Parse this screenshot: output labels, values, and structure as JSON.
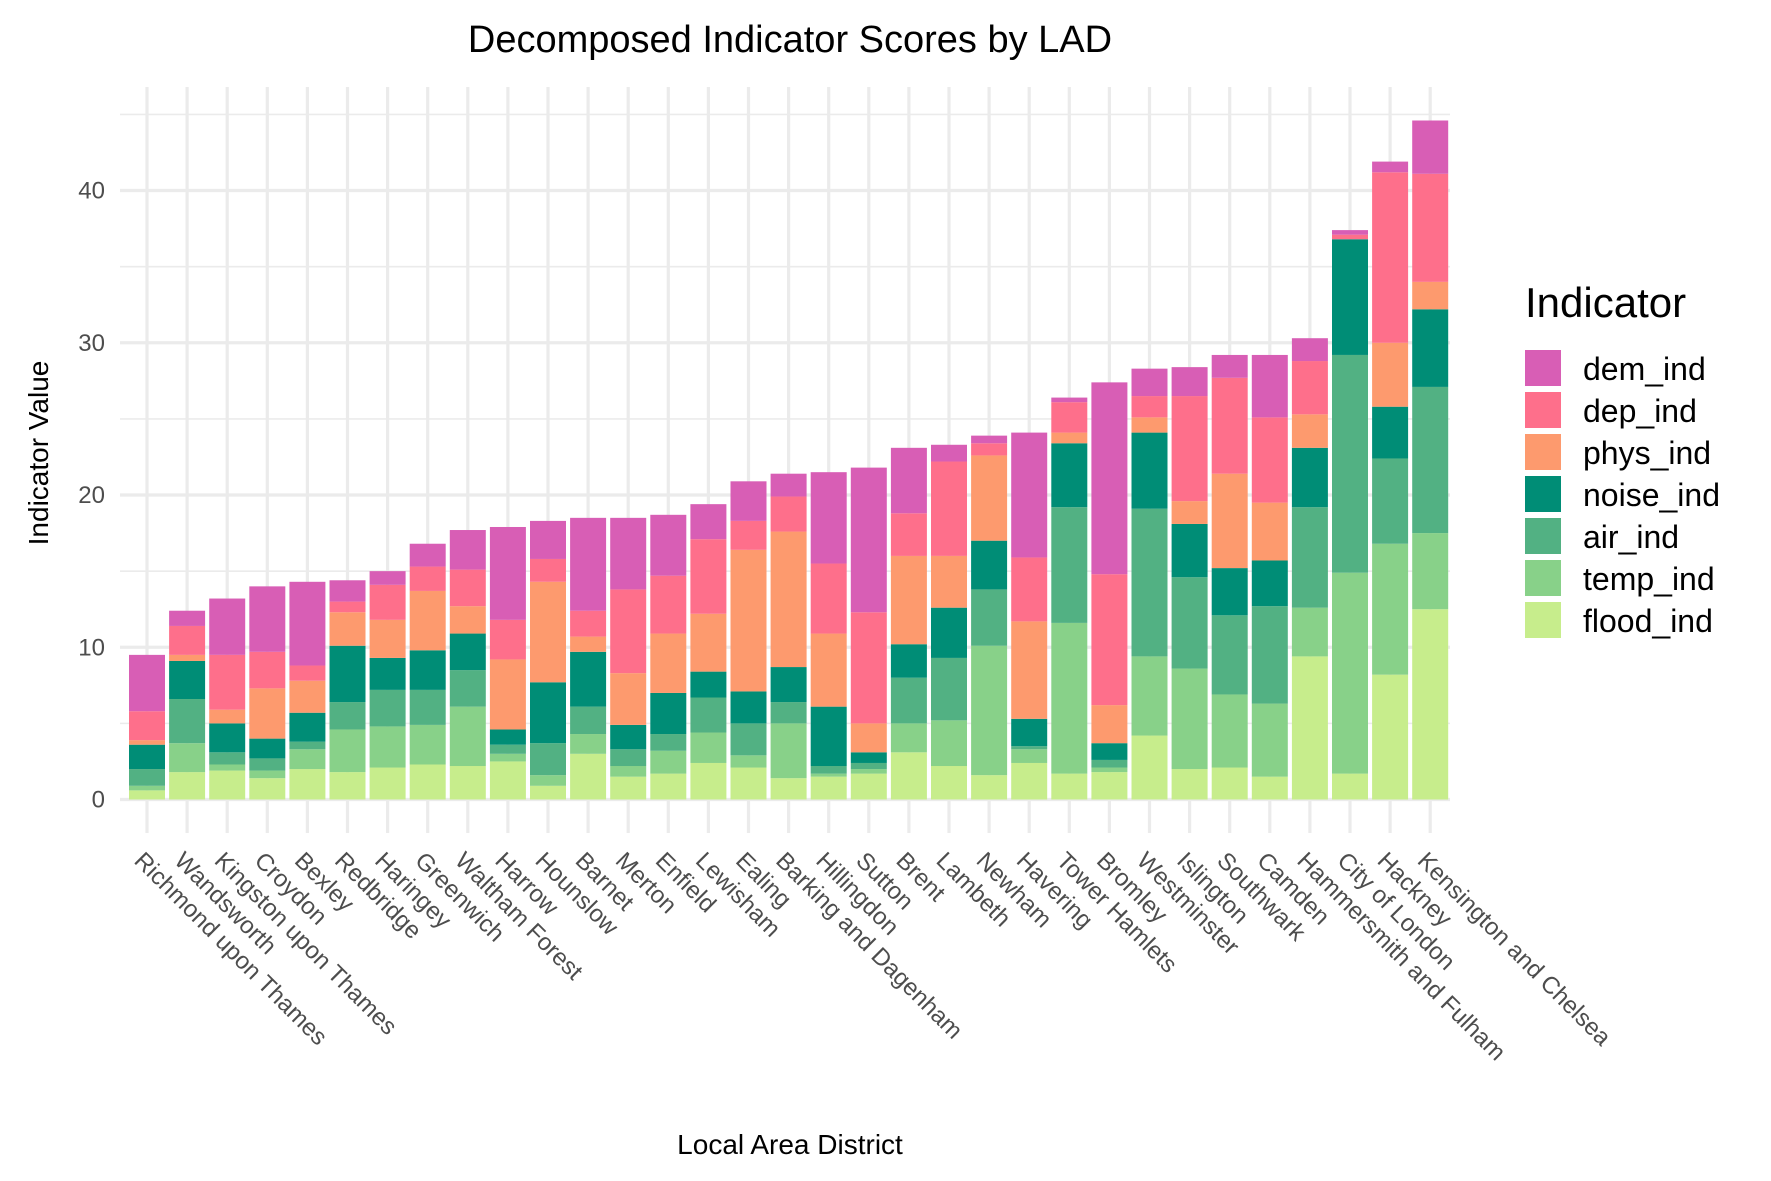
{
  "chart_data": {
    "type": "bar",
    "stacked": true,
    "title": "Decomposed Indicator Scores by LAD",
    "xlabel": "Local Area District",
    "ylabel": "Indicator Value",
    "ylim": [
      -2.2,
      46.8
    ],
    "yticks": [
      0,
      10,
      20,
      30,
      40
    ],
    "grid": true,
    "legend_title": "Indicator",
    "legend_position": "right",
    "categories": [
      "Richmond upon Thames",
      "Wandsworth",
      "Kingston upon Thames",
      "Croydon",
      "Bexley",
      "Redbridge",
      "Haringey",
      "Greenwich",
      "Waltham Forest",
      "Harrow",
      "Hounslow",
      "Barnet",
      "Merton",
      "Enfield",
      "Lewisham",
      "Ealing",
      "Barking and Dagenham",
      "Hillingdon",
      "Sutton",
      "Brent",
      "Lambeth",
      "Newham",
      "Havering",
      "Tower Hamlets",
      "Bromley",
      "Westminster",
      "Islington",
      "Southwark",
      "Camden",
      "Hammersmith and Fulham",
      "City of London",
      "Hackney",
      "Kensington and Chelsea"
    ],
    "series": [
      {
        "name": "flood_ind",
        "color": "#c7ed8c",
        "values": [
          0.6,
          1.8,
          1.9,
          1.4,
          2.0,
          1.8,
          2.1,
          2.3,
          2.2,
          2.5,
          0.9,
          3.0,
          1.5,
          1.7,
          2.4,
          2.1,
          1.4,
          1.5,
          1.7,
          3.1,
          2.2,
          1.6,
          2.4,
          1.7,
          1.8,
          4.2,
          2.0,
          2.1,
          1.5,
          9.4,
          1.7,
          8.2,
          12.5
        ]
      },
      {
        "name": "temp_ind",
        "color": "#88d189",
        "values": [
          0.3,
          1.9,
          0.4,
          0.5,
          1.3,
          2.8,
          2.7,
          2.6,
          3.9,
          0.5,
          0.7,
          1.3,
          0.7,
          1.5,
          2.0,
          0.8,
          3.6,
          0.2,
          0.3,
          1.9,
          3.0,
          8.5,
          0.9,
          9.9,
          0.3,
          5.2,
          6.6,
          4.8,
          4.8,
          3.2,
          13.2,
          8.6,
          5.0
        ]
      },
      {
        "name": "air_ind",
        "color": "#52b183",
        "values": [
          1.1,
          2.9,
          0.8,
          0.8,
          0.5,
          1.8,
          2.4,
          2.3,
          2.4,
          0.6,
          2.1,
          1.8,
          1.1,
          1.1,
          2.3,
          2.1,
          1.4,
          0.5,
          0.4,
          3.0,
          4.1,
          3.7,
          0.2,
          7.6,
          0.5,
          9.7,
          6.0,
          5.2,
          6.4,
          6.6,
          14.3,
          5.6,
          9.6
        ]
      },
      {
        "name": "noise_ind",
        "color": "#008d76",
        "values": [
          1.6,
          2.5,
          1.9,
          1.3,
          1.9,
          3.7,
          2.1,
          2.6,
          2.4,
          1.0,
          4.0,
          3.6,
          1.6,
          2.7,
          1.7,
          2.1,
          2.3,
          3.9,
          0.7,
          2.2,
          3.3,
          3.2,
          1.8,
          4.2,
          1.1,
          5.0,
          3.5,
          3.1,
          3.0,
          3.9,
          7.6,
          3.4,
          5.1
        ]
      },
      {
        "name": "phys_ind",
        "color": "#fd9a6e",
        "values": [
          0.3,
          0.4,
          0.9,
          3.3,
          2.1,
          2.2,
          2.5,
          3.9,
          1.8,
          4.6,
          6.6,
          1.0,
          3.4,
          3.9,
          3.8,
          9.3,
          8.9,
          4.8,
          1.9,
          5.8,
          3.4,
          5.6,
          6.4,
          0.7,
          2.5,
          1.0,
          1.5,
          6.2,
          3.8,
          2.2,
          0.0,
          4.2,
          1.8
        ]
      },
      {
        "name": "dep_ind",
        "color": "#fe6f8b",
        "values": [
          1.9,
          1.9,
          3.6,
          2.4,
          1.0,
          0.7,
          2.3,
          1.6,
          2.4,
          2.6,
          1.5,
          1.7,
          5.5,
          3.8,
          4.9,
          1.9,
          2.3,
          4.6,
          7.3,
          2.8,
          6.2,
          0.8,
          4.2,
          2.0,
          8.6,
          1.4,
          6.9,
          6.3,
          5.6,
          3.5,
          0.3,
          11.2,
          7.1
        ]
      },
      {
        "name": "dem_ind",
        "color": "#d85eb5",
        "values": [
          3.7,
          1.0,
          3.7,
          4.3,
          5.5,
          1.4,
          0.9,
          1.5,
          2.6,
          6.1,
          2.5,
          6.1,
          4.7,
          4.0,
          2.3,
          2.6,
          1.5,
          6.0,
          9.5,
          4.3,
          1.1,
          0.5,
          8.2,
          0.3,
          12.6,
          1.8,
          1.9,
          1.5,
          4.1,
          1.5,
          0.3,
          0.7,
          3.5
        ]
      }
    ]
  }
}
